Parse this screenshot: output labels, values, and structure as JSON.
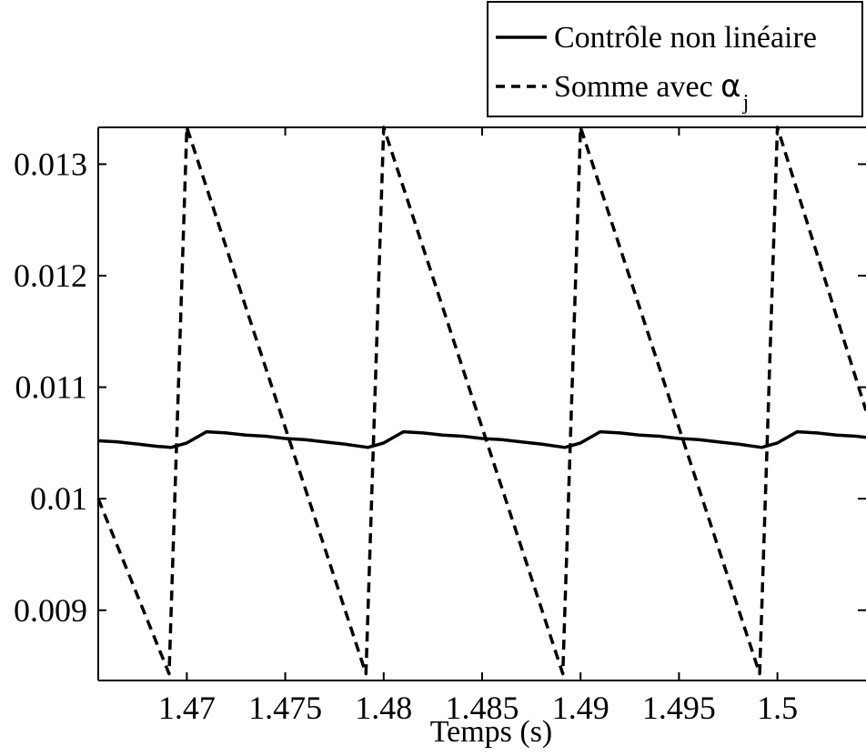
{
  "chart_data": {
    "type": "line",
    "title": "",
    "xlabel": "Temps (s)",
    "ylabel": "",
    "xlim": [
      1.4655,
      1.5045
    ],
    "ylim": [
      0.00837,
      0.01333
    ],
    "x_ticks": [
      1.47,
      1.475,
      1.48,
      1.485,
      1.49,
      1.495,
      1.5
    ],
    "x_tick_labels": [
      "1.47",
      "1.475",
      "1.48",
      "1.485",
      "1.49",
      "1.495",
      "1.5"
    ],
    "y_ticks": [
      0.009,
      0.01,
      0.011,
      0.012,
      0.013
    ],
    "y_tick_labels": [
      "0.009",
      "0.01",
      "0.011",
      "0.012",
      "0.013"
    ],
    "grid": false,
    "legend_position": "top-right",
    "series": [
      {
        "name": "Contrôle non linéaire",
        "style": "solid",
        "color": "#000000",
        "x": [
          1.4655,
          1.4665,
          1.4675,
          1.4685,
          1.4692,
          1.47,
          1.471,
          1.472,
          1.473,
          1.474,
          1.475,
          1.476,
          1.477,
          1.478,
          1.4792,
          1.48,
          1.481,
          1.482,
          1.483,
          1.484,
          1.485,
          1.486,
          1.487,
          1.488,
          1.4892,
          1.49,
          1.491,
          1.492,
          1.493,
          1.494,
          1.495,
          1.496,
          1.497,
          1.498,
          1.4992,
          1.5,
          1.501,
          1.502,
          1.503,
          1.504,
          1.5045
        ],
        "y": [
          0.01052,
          0.01051,
          0.01049,
          0.01047,
          0.01046,
          0.0105,
          0.0106,
          0.01059,
          0.01057,
          0.01056,
          0.01054,
          0.01053,
          0.01051,
          0.01049,
          0.01046,
          0.0105,
          0.0106,
          0.01059,
          0.01057,
          0.01056,
          0.01054,
          0.01053,
          0.01051,
          0.01049,
          0.01046,
          0.0105,
          0.0106,
          0.01059,
          0.01057,
          0.01056,
          0.01054,
          0.01053,
          0.01051,
          0.01049,
          0.01046,
          0.0105,
          0.0106,
          0.01059,
          0.01057,
          0.01056,
          0.01055
        ]
      },
      {
        "name": "Somme avec α_j",
        "style": "dashed",
        "color": "#000000",
        "x": [
          1.4655,
          1.4691,
          1.47,
          1.4791,
          1.48,
          1.4891,
          1.49,
          1.4991,
          1.5,
          1.5045
        ],
        "y": [
          0.01,
          0.00843,
          0.01333,
          0.00843,
          0.01333,
          0.00843,
          0.01333,
          0.00843,
          0.01333,
          0.01079
        ]
      }
    ]
  },
  "legend": {
    "entries": [
      {
        "label": "Contrôle non linéaire"
      },
      {
        "label": "Somme avec ",
        "symbol": "α",
        "subscript": "j"
      }
    ]
  }
}
